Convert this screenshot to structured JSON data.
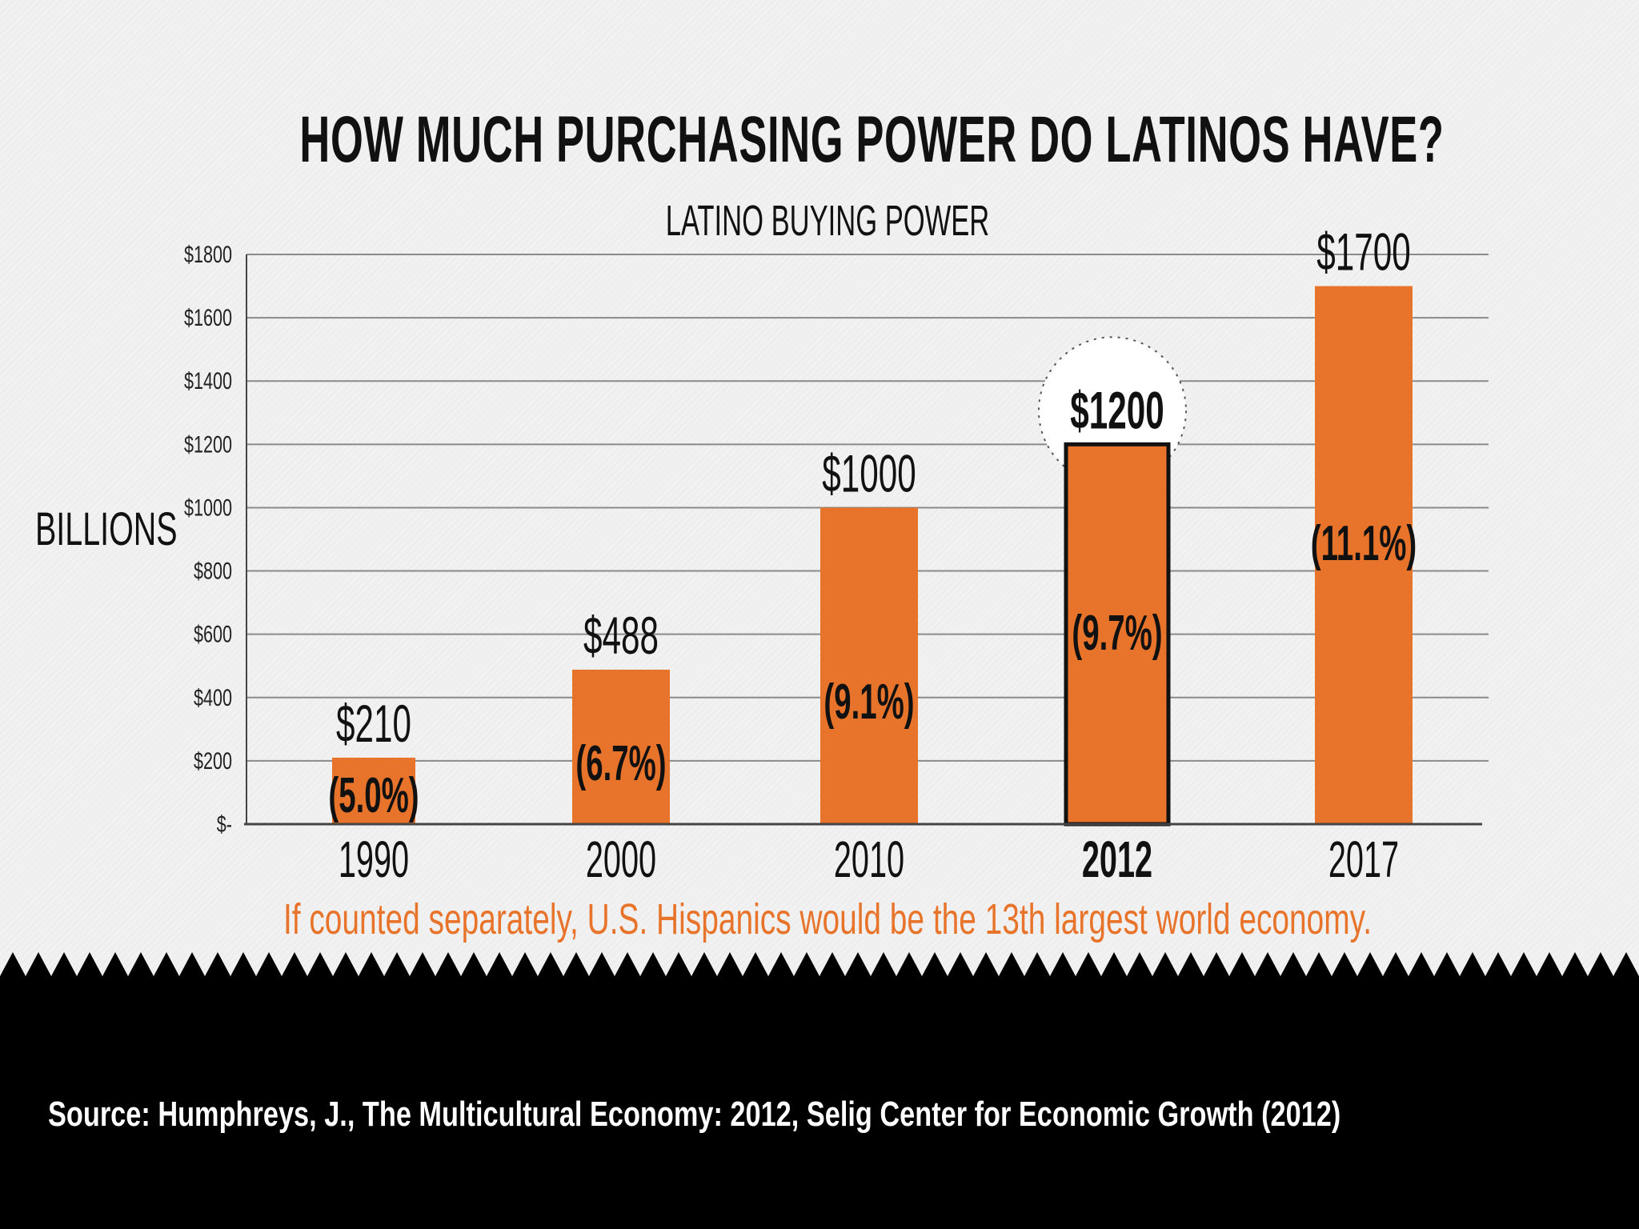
{
  "header": {
    "title": "HOW MUCH PURCHASING POWER DO LATINOS HAVE?",
    "subtitle": "LATINO BUYING POWER"
  },
  "y_axis_label": "BILLIONS",
  "note": "If counted separately, U.S. Hispanics would be the 13th largest world economy.",
  "source": "Source: Humphreys, J., The Multicultural Economy: 2012, Selig Center for Economic Growth (2012)",
  "colors": {
    "bar": "#e8742b",
    "highlight_border": "#111111",
    "footer": "#000000",
    "note": "#e8742b"
  },
  "chart_data": {
    "type": "bar",
    "title": "LATINO BUYING POWER",
    "ylabel": "BILLIONS",
    "xlabel": "",
    "ylim": [
      0,
      1800
    ],
    "yticks": [
      0,
      200,
      400,
      600,
      800,
      1000,
      1200,
      1400,
      1600,
      1800
    ],
    "ytick_labels": [
      "$-",
      "$200",
      "$400",
      "$600",
      "$800",
      "$1000",
      "$1200",
      "$1400",
      "$1600",
      "$1800"
    ],
    "grid": true,
    "categories": [
      "1990",
      "2000",
      "2010",
      "2012",
      "2017"
    ],
    "values": [
      210,
      488,
      1000,
      1200,
      1700
    ],
    "value_labels": [
      "$210",
      "$488",
      "$1000",
      "$1200",
      "$1700"
    ],
    "share_labels": [
      "(5.0%)",
      "(6.7%)",
      "(9.1%)",
      "(9.7%)",
      "(11.1%)"
    ],
    "highlight": "2012"
  }
}
